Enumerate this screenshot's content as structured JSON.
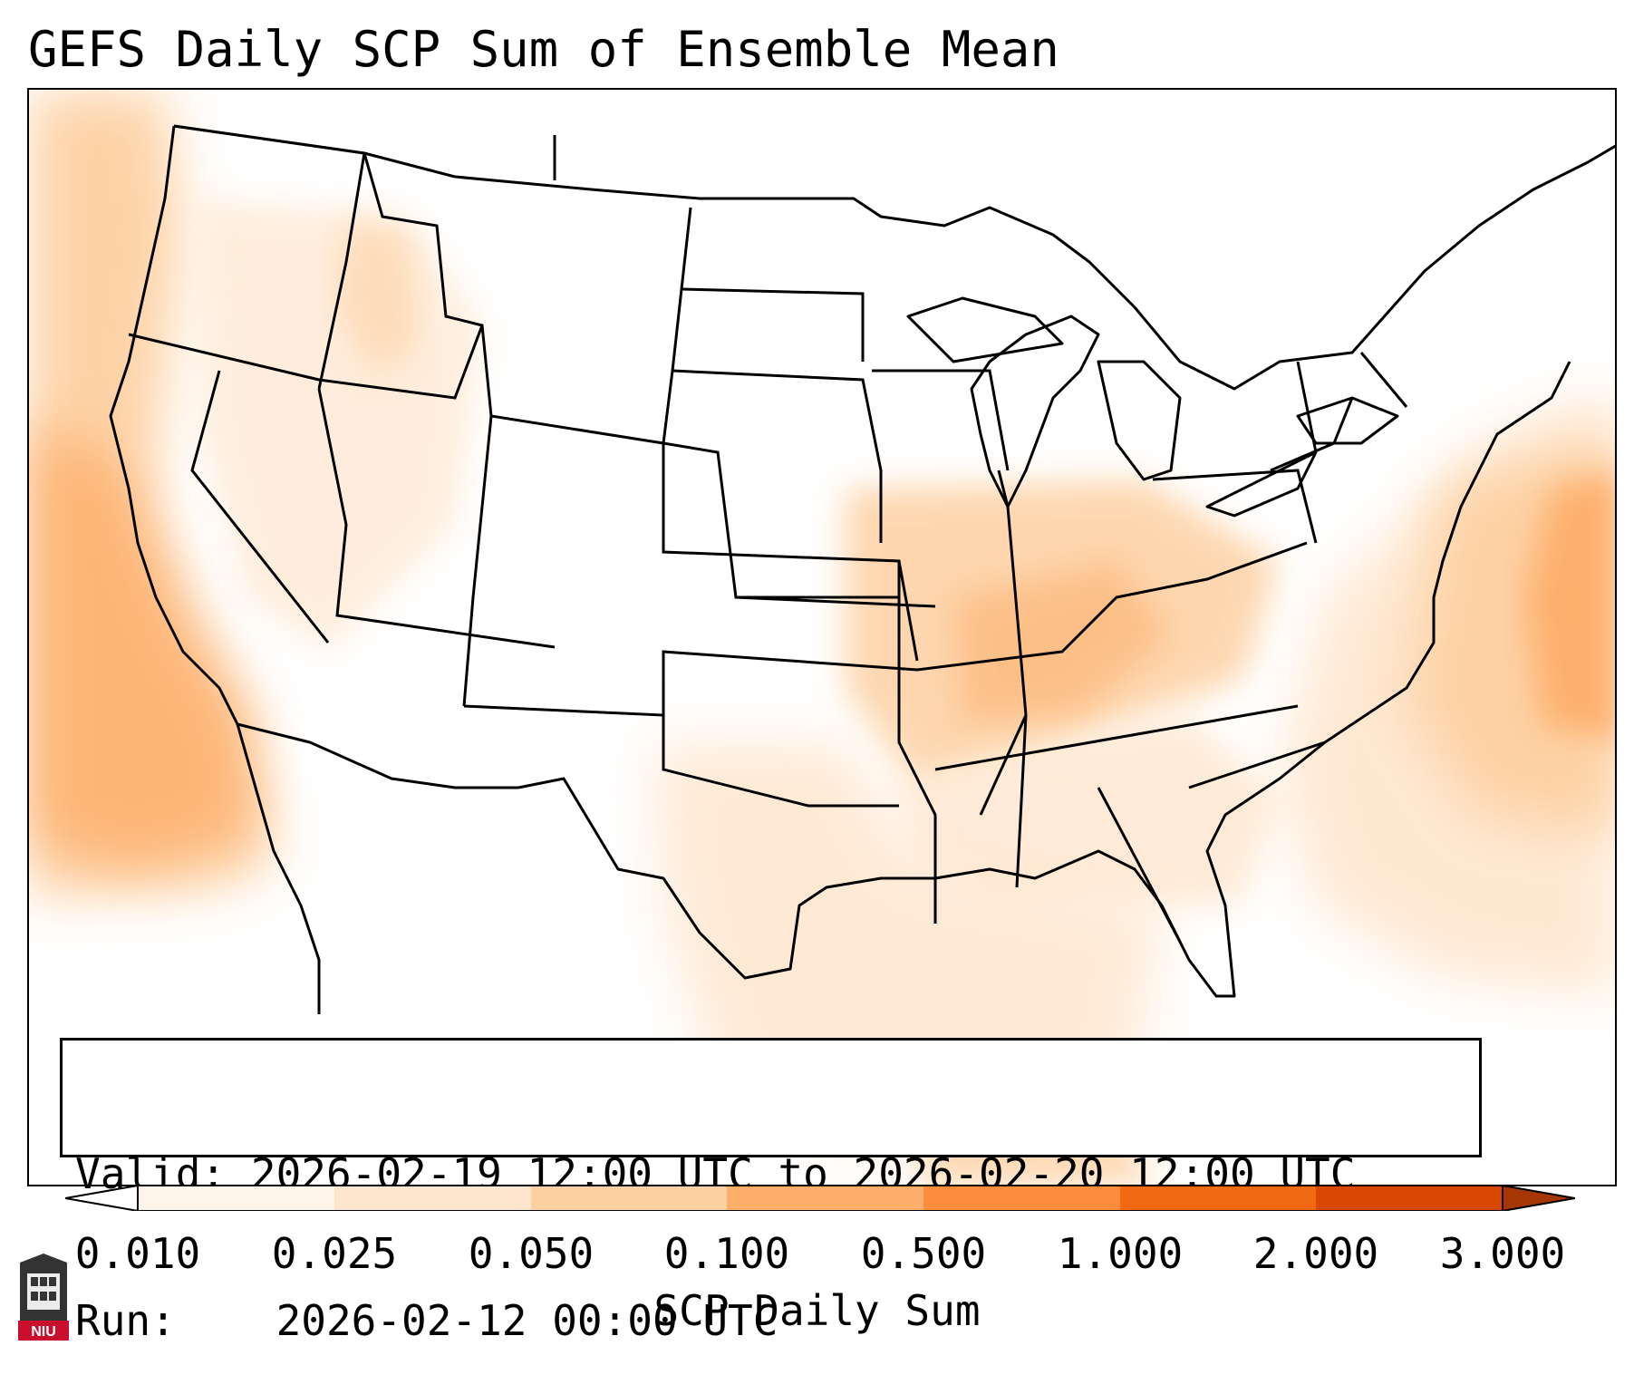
{
  "title": "GEFS Daily SCP Sum of Ensemble Mean",
  "info_box": {
    "valid_label": "Valid:",
    "valid_value": "2026-02-19 12:00 UTC to 2026-02-20 12:00 UTC",
    "run_label": "Run:",
    "run_value": "2026-02-12 00:00 UTC"
  },
  "colorbar": {
    "label": "SCP Daily Sum",
    "ticks": [
      "0.010",
      "0.025",
      "0.050",
      "0.100",
      "0.500",
      "1.000",
      "2.000",
      "3.000"
    ],
    "colors": [
      "#fff5eb",
      "#fee6ce",
      "#fdd0a2",
      "#fdae6b",
      "#fd8d3c",
      "#f16913",
      "#d94801",
      "#a63603"
    ],
    "extend": "both"
  },
  "map": {
    "region": "Contiguous United States",
    "shading_color": "#fdae6b",
    "outline_color": "#000000"
  },
  "logo": {
    "text": "NIU",
    "icon": "university-logo-icon"
  }
}
